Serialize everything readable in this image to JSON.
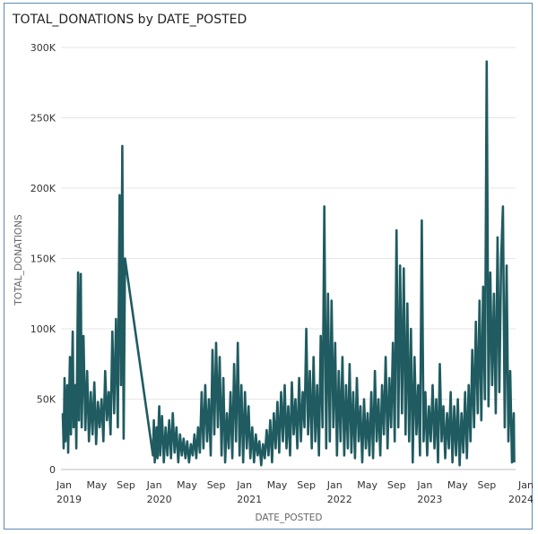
{
  "chart_data": {
    "type": "line",
    "title": "TOTAL_DONATIONS by DATE_POSTED",
    "xlabel": "DATE_POSTED",
    "ylabel": "TOTAL_DONATIONS",
    "ylim": [
      0,
      300000
    ],
    "xlim": [
      2019.0,
      2024.0
    ],
    "grid": true,
    "color": "#1f5b60",
    "y_ticks": [
      {
        "value": 0,
        "label": "0"
      },
      {
        "value": 50000,
        "label": "50K"
      },
      {
        "value": 100000,
        "label": "100K"
      },
      {
        "value": 150000,
        "label": "150K"
      },
      {
        "value": 200000,
        "label": "200K"
      },
      {
        "value": 250000,
        "label": "250K"
      },
      {
        "value": 300000,
        "label": "300K"
      }
    ],
    "x_ticks": [
      {
        "value": 2019.0,
        "month": "Jan",
        "year": "2019"
      },
      {
        "value": 2019.333,
        "month": "May",
        "year": ""
      },
      {
        "value": 2019.667,
        "month": "Sep",
        "year": ""
      },
      {
        "value": 2020.0,
        "month": "Jan",
        "year": "2020"
      },
      {
        "value": 2020.333,
        "month": "May",
        "year": ""
      },
      {
        "value": 2020.667,
        "month": "Sep",
        "year": ""
      },
      {
        "value": 2021.0,
        "month": "Jan",
        "year": "2021"
      },
      {
        "value": 2021.333,
        "month": "May",
        "year": ""
      },
      {
        "value": 2021.667,
        "month": "Sep",
        "year": ""
      },
      {
        "value": 2022.0,
        "month": "Jan",
        "year": "2022"
      },
      {
        "value": 2022.333,
        "month": "May",
        "year": ""
      },
      {
        "value": 2022.667,
        "month": "Sep",
        "year": ""
      },
      {
        "value": 2023.0,
        "month": "Jan",
        "year": "2023"
      },
      {
        "value": 2023.333,
        "month": "May",
        "year": ""
      },
      {
        "value": 2023.667,
        "month": "Sep",
        "year": ""
      },
      {
        "value": 2024.0,
        "month": "Jan",
        "year": "2024"
      }
    ],
    "series": [
      {
        "name": "TOTAL_DONATIONS",
        "points_x_year_y_thousands": [
          [
            2019.0,
            40
          ],
          [
            2019.01,
            15
          ],
          [
            2019.02,
            65
          ],
          [
            2019.03,
            20
          ],
          [
            2019.05,
            60
          ],
          [
            2019.06,
            12
          ],
          [
            2019.08,
            80
          ],
          [
            2019.09,
            25
          ],
          [
            2019.11,
            98
          ],
          [
            2019.12,
            30
          ],
          [
            2019.14,
            60
          ],
          [
            2019.15,
            15
          ],
          [
            2019.17,
            140
          ],
          [
            2019.18,
            35
          ],
          [
            2019.2,
            139
          ],
          [
            2019.21,
            30
          ],
          [
            2019.23,
            95
          ],
          [
            2019.25,
            28
          ],
          [
            2019.27,
            70
          ],
          [
            2019.29,
            20
          ],
          [
            2019.31,
            55
          ],
          [
            2019.33,
            25
          ],
          [
            2019.35,
            62
          ],
          [
            2019.37,
            18
          ],
          [
            2019.39,
            48
          ],
          [
            2019.41,
            30
          ],
          [
            2019.43,
            50
          ],
          [
            2019.45,
            20
          ],
          [
            2019.47,
            70
          ],
          [
            2019.49,
            35
          ],
          [
            2019.51,
            55
          ],
          [
            2019.53,
            25
          ],
          [
            2019.55,
            98
          ],
          [
            2019.57,
            40
          ],
          [
            2019.59,
            107
          ],
          [
            2019.61,
            30
          ],
          [
            2019.63,
            195
          ],
          [
            2019.645,
            60
          ],
          [
            2019.66,
            230
          ],
          [
            2019.675,
            22
          ],
          [
            2019.69,
            150
          ],
          [
            2020.0,
            10
          ],
          [
            2020.01,
            35
          ],
          [
            2020.02,
            5
          ],
          [
            2020.04,
            30
          ],
          [
            2020.05,
            8
          ],
          [
            2020.07,
            45
          ],
          [
            2020.08,
            10
          ],
          [
            2020.1,
            38
          ],
          [
            2020.12,
            5
          ],
          [
            2020.14,
            30
          ],
          [
            2020.16,
            10
          ],
          [
            2020.18,
            35
          ],
          [
            2020.2,
            8
          ],
          [
            2020.22,
            40
          ],
          [
            2020.24,
            12
          ],
          [
            2020.26,
            30
          ],
          [
            2020.28,
            5
          ],
          [
            2020.3,
            25
          ],
          [
            2020.32,
            10
          ],
          [
            2020.34,
            22
          ],
          [
            2020.36,
            8
          ],
          [
            2020.38,
            20
          ],
          [
            2020.4,
            5
          ],
          [
            2020.42,
            18
          ],
          [
            2020.44,
            10
          ],
          [
            2020.46,
            25
          ],
          [
            2020.48,
            8
          ],
          [
            2020.5,
            30
          ],
          [
            2020.52,
            12
          ],
          [
            2020.54,
            55
          ],
          [
            2020.56,
            15
          ],
          [
            2020.58,
            60
          ],
          [
            2020.6,
            20
          ],
          [
            2020.62,
            50
          ],
          [
            2020.64,
            10
          ],
          [
            2020.66,
            85
          ],
          [
            2020.68,
            25
          ],
          [
            2020.7,
            90
          ],
          [
            2020.72,
            30
          ],
          [
            2020.74,
            80
          ],
          [
            2020.76,
            10
          ],
          [
            2020.78,
            65
          ],
          [
            2020.8,
            5
          ],
          [
            2020.82,
            40
          ],
          [
            2020.84,
            15
          ],
          [
            2020.86,
            55
          ],
          [
            2020.88,
            8
          ],
          [
            2020.9,
            75
          ],
          [
            2020.92,
            20
          ],
          [
            2020.94,
            90
          ],
          [
            2020.96,
            10
          ],
          [
            2020.98,
            60
          ],
          [
            2021.0,
            5
          ],
          [
            2021.02,
            55
          ],
          [
            2021.04,
            15
          ],
          [
            2021.06,
            45
          ],
          [
            2021.08,
            8
          ],
          [
            2021.1,
            30
          ],
          [
            2021.12,
            5
          ],
          [
            2021.14,
            25
          ],
          [
            2021.16,
            10
          ],
          [
            2021.18,
            20
          ],
          [
            2021.2,
            3
          ],
          [
            2021.22,
            18
          ],
          [
            2021.24,
            8
          ],
          [
            2021.26,
            28
          ],
          [
            2021.28,
            10
          ],
          [
            2021.3,
            35
          ],
          [
            2021.32,
            5
          ],
          [
            2021.34,
            40
          ],
          [
            2021.36,
            15
          ],
          [
            2021.38,
            48
          ],
          [
            2021.4,
            12
          ],
          [
            2021.42,
            55
          ],
          [
            2021.44,
            20
          ],
          [
            2021.46,
            60
          ],
          [
            2021.48,
            15
          ],
          [
            2021.5,
            45
          ],
          [
            2021.52,
            10
          ],
          [
            2021.54,
            62
          ],
          [
            2021.56,
            25
          ],
          [
            2021.58,
            50
          ],
          [
            2021.6,
            15
          ],
          [
            2021.62,
            65
          ],
          [
            2021.64,
            20
          ],
          [
            2021.66,
            55
          ],
          [
            2021.68,
            30
          ],
          [
            2021.7,
            100
          ],
          [
            2021.72,
            25
          ],
          [
            2021.74,
            70
          ],
          [
            2021.76,
            15
          ],
          [
            2021.78,
            80
          ],
          [
            2021.8,
            20
          ],
          [
            2021.82,
            60
          ],
          [
            2021.84,
            10
          ],
          [
            2021.86,
            95
          ],
          [
            2021.88,
            30
          ],
          [
            2021.9,
            187
          ],
          [
            2021.92,
            15
          ],
          [
            2021.94,
            125
          ],
          [
            2021.96,
            20
          ],
          [
            2021.98,
            120
          ],
          [
            2022.0,
            30
          ],
          [
            2022.02,
            90
          ],
          [
            2022.04,
            10
          ],
          [
            2022.06,
            70
          ],
          [
            2022.08,
            20
          ],
          [
            2022.1,
            80
          ],
          [
            2022.12,
            10
          ],
          [
            2022.14,
            60
          ],
          [
            2022.16,
            15
          ],
          [
            2022.18,
            75
          ],
          [
            2022.2,
            12
          ],
          [
            2022.22,
            55
          ],
          [
            2022.24,
            8
          ],
          [
            2022.26,
            65
          ],
          [
            2022.28,
            20
          ],
          [
            2022.3,
            45
          ],
          [
            2022.32,
            5
          ],
          [
            2022.34,
            50
          ],
          [
            2022.36,
            15
          ],
          [
            2022.38,
            40
          ],
          [
            2022.4,
            10
          ],
          [
            2022.42,
            55
          ],
          [
            2022.44,
            8
          ],
          [
            2022.46,
            70
          ],
          [
            2022.48,
            20
          ],
          [
            2022.5,
            50
          ],
          [
            2022.52,
            10
          ],
          [
            2022.54,
            60
          ],
          [
            2022.56,
            25
          ],
          [
            2022.58,
            80
          ],
          [
            2022.6,
            15
          ],
          [
            2022.62,
            65
          ],
          [
            2022.64,
            30
          ],
          [
            2022.66,
            90
          ],
          [
            2022.68,
            20
          ],
          [
            2022.7,
            170
          ],
          [
            2022.72,
            30
          ],
          [
            2022.74,
            145
          ],
          [
            2022.76,
            40
          ],
          [
            2022.78,
            143
          ],
          [
            2022.8,
            25
          ],
          [
            2022.82,
            118
          ],
          [
            2022.84,
            20
          ],
          [
            2022.86,
            100
          ],
          [
            2022.88,
            5
          ],
          [
            2022.9,
            80
          ],
          [
            2022.92,
            25
          ],
          [
            2022.94,
            60
          ],
          [
            2022.96,
            10
          ],
          [
            2022.98,
            177
          ],
          [
            2023.0,
            20
          ],
          [
            2023.02,
            55
          ],
          [
            2023.04,
            10
          ],
          [
            2023.06,
            45
          ],
          [
            2023.08,
            20
          ],
          [
            2023.1,
            60
          ],
          [
            2023.12,
            15
          ],
          [
            2023.14,
            50
          ],
          [
            2023.16,
            5
          ],
          [
            2023.18,
            75
          ],
          [
            2023.2,
            20
          ],
          [
            2023.22,
            45
          ],
          [
            2023.24,
            8
          ],
          [
            2023.26,
            40
          ],
          [
            2023.28,
            15
          ],
          [
            2023.3,
            55
          ],
          [
            2023.32,
            5
          ],
          [
            2023.34,
            45
          ],
          [
            2023.36,
            10
          ],
          [
            2023.38,
            50
          ],
          [
            2023.4,
            3
          ],
          [
            2023.42,
            40
          ],
          [
            2023.44,
            12
          ],
          [
            2023.46,
            55
          ],
          [
            2023.48,
            8
          ],
          [
            2023.5,
            60
          ],
          [
            2023.52,
            20
          ],
          [
            2023.54,
            85
          ],
          [
            2023.56,
            30
          ],
          [
            2023.58,
            105
          ],
          [
            2023.6,
            40
          ],
          [
            2023.62,
            120
          ],
          [
            2023.64,
            35
          ],
          [
            2023.66,
            130
          ],
          [
            2023.68,
            50
          ],
          [
            2023.7,
            290
          ],
          [
            2023.72,
            45
          ],
          [
            2023.74,
            140
          ],
          [
            2023.76,
            60
          ],
          [
            2023.78,
            125
          ],
          [
            2023.8,
            40
          ],
          [
            2023.82,
            165
          ],
          [
            2023.84,
            55
          ],
          [
            2023.86,
            150
          ],
          [
            2023.88,
            187
          ],
          [
            2023.9,
            30
          ],
          [
            2023.92,
            145
          ],
          [
            2023.94,
            20
          ],
          [
            2023.96,
            70
          ],
          [
            2023.98,
            5
          ],
          [
            2024.0,
            40
          ],
          [
            2024.005,
            5
          ]
        ]
      }
    ]
  }
}
